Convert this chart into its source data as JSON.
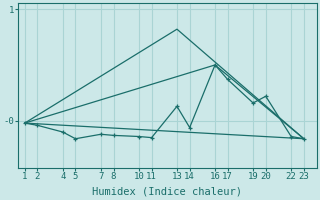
{
  "xlabel": "Humidex (Indice chaleur)",
  "background_color": "#cce8e8",
  "line_color": "#1a6e6a",
  "grid_color": "#aad4d4",
  "x_ticks": [
    1,
    2,
    4,
    5,
    7,
    8,
    10,
    11,
    13,
    14,
    16,
    17,
    19,
    20,
    22,
    23
  ],
  "xlim": [
    0.5,
    24.0
  ],
  "ylim": [
    -0.42,
    1.05
  ],
  "y_tick_positions": [
    0.0,
    1.0
  ],
  "y_tick_labels": [
    "-0",
    "1"
  ],
  "line1_x": [
    1,
    2,
    4,
    5,
    7,
    8,
    10,
    11,
    13,
    14,
    16,
    17,
    19,
    20,
    22,
    23
  ],
  "line1_y": [
    -0.02,
    -0.04,
    -0.1,
    -0.16,
    -0.12,
    -0.13,
    -0.14,
    -0.15,
    0.13,
    -0.06,
    0.5,
    0.37,
    0.16,
    0.22,
    -0.14,
    -0.16
  ],
  "line2_x": [
    1,
    23
  ],
  "line2_y": [
    -0.02,
    -0.16
  ],
  "line3_x": [
    1,
    13,
    23
  ],
  "line3_y": [
    -0.02,
    0.82,
    -0.16
  ],
  "line4_x": [
    1,
    16,
    23
  ],
  "line4_y": [
    -0.02,
    0.5,
    -0.16
  ],
  "tick_fontsize": 6.5,
  "label_fontsize": 7.5
}
